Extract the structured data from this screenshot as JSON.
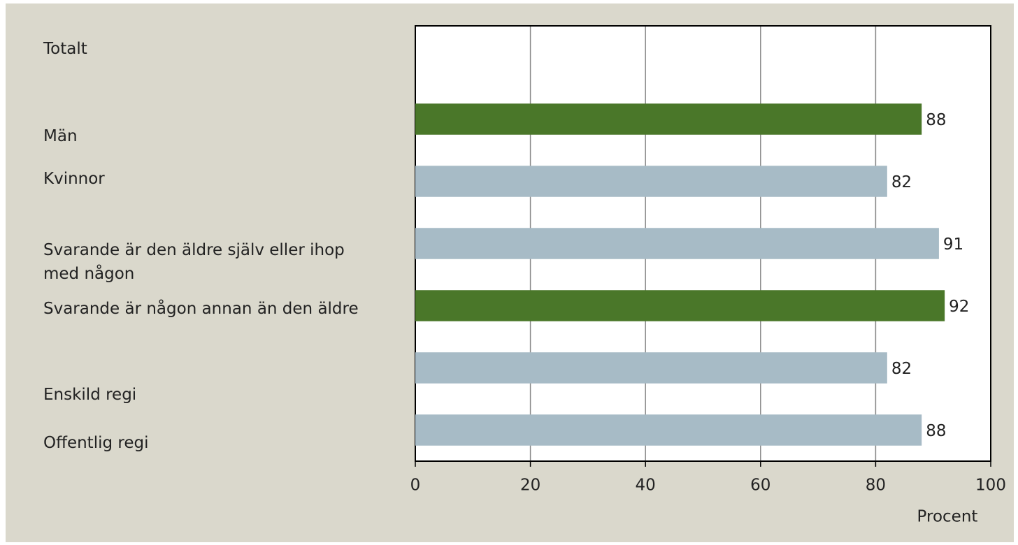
{
  "chart_data": {
    "type": "bar",
    "orientation": "horizontal",
    "categories": [
      "Totalt",
      "Män",
      "Kvinnor",
      "Svarande är den äldre själv eller ihop med någon",
      "Svarande är någon annan än den äldre",
      "Enskild regi",
      "Offentlig regi"
    ],
    "values": [
      null,
      88,
      82,
      91,
      92,
      82,
      88
    ],
    "colors": [
      null,
      "#4a7729",
      "#a7bbc6",
      "#a7bbc6",
      "#4a7729",
      "#a7bbc6",
      "#a7bbc6"
    ],
    "xlim": [
      0,
      100
    ],
    "xticks": [
      0,
      20,
      40,
      60,
      80,
      100
    ],
    "grid": true,
    "x_label": "Procent"
  }
}
